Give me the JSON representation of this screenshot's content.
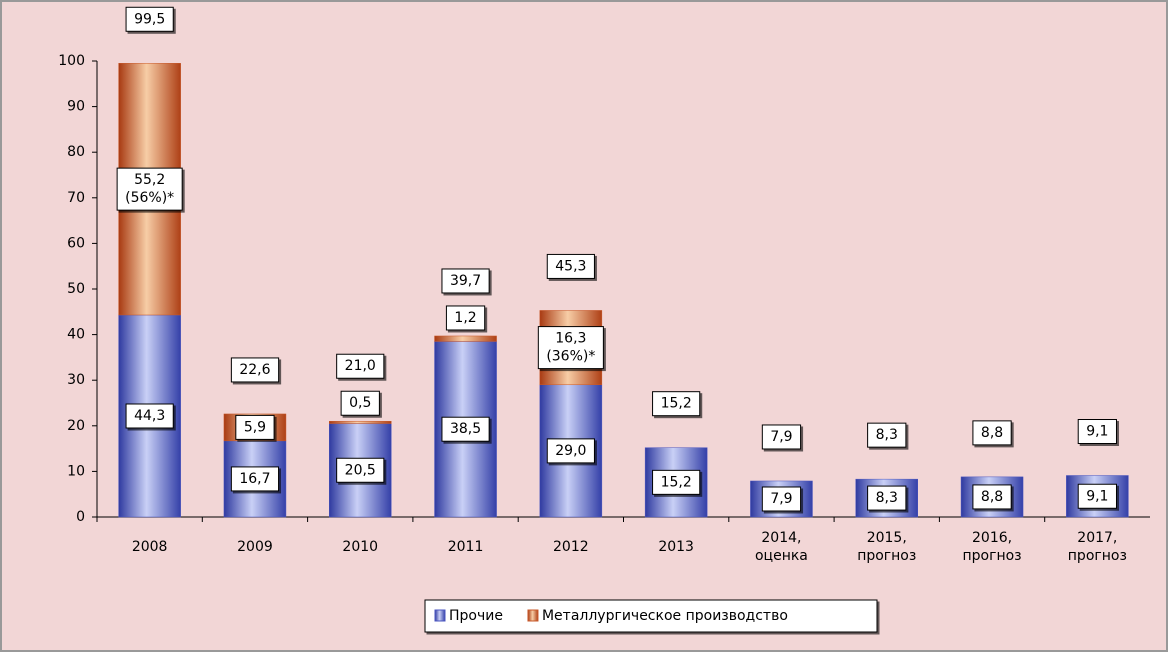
{
  "chart_data": {
    "type": "stacked_bar",
    "categories": [
      "2008",
      "2009",
      "2010",
      "2011",
      "2012",
      "2013",
      "2014,\nоценка",
      "2015,\nпрогноз",
      "2016,\nпрогноз",
      "2017,\nпрогноз"
    ],
    "series": [
      {
        "name": "Прочие",
        "color": "#4a55c0",
        "values": [
          44.3,
          16.7,
          20.5,
          38.5,
          29.0,
          15.2,
          7.9,
          8.3,
          8.8,
          9.1
        ],
        "value_labels": [
          "44,3",
          "16,7",
          "20,5",
          "38,5",
          "29,0",
          "15,2",
          "7,9",
          "8,3",
          "8,8",
          "9,1"
        ]
      },
      {
        "name": "Металлургическое производство",
        "color": "#c8582a",
        "values": [
          55.2,
          5.9,
          0.5,
          1.2,
          16.3,
          null,
          null,
          null,
          null,
          null
        ],
        "value_labels": [
          "55,2\n(56%)*",
          "5,9",
          "0,5",
          "1,2",
          "16,3\n(36%)*",
          null,
          null,
          null,
          null,
          null
        ]
      }
    ],
    "totals": {
      "values": [
        99.5,
        22.6,
        21.0,
        39.7,
        45.3,
        15.2,
        7.9,
        8.3,
        8.8,
        9.1
      ],
      "value_labels": [
        "99,5",
        "22,6",
        "21,0",
        "39,7",
        "45,3",
        "15,2",
        "7,9",
        "8,3",
        "8,8",
        "9,1"
      ]
    },
    "ylim": [
      0,
      100
    ],
    "yticks": [
      0,
      10,
      20,
      30,
      40,
      50,
      60,
      70,
      80,
      90,
      100
    ],
    "grid": false,
    "legend": "bottom"
  }
}
